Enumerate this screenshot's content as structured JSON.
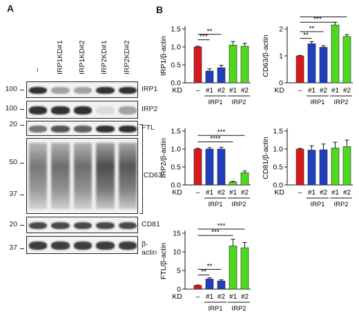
{
  "panels": {
    "a": "A",
    "b": "B"
  },
  "western_blot": {
    "lanes": [
      "–",
      "IRP1KD#1",
      "IRP1KD#2",
      "IRP2KD#1",
      "IRP2KD#2"
    ],
    "rows": [
      {
        "protein": "IRP1",
        "markers": [
          "100"
        ],
        "intensity": [
          0.85,
          0.35,
          0.35,
          0.85,
          0.85
        ]
      },
      {
        "protein": "IRP2",
        "markers": [
          "100"
        ],
        "intensity": [
          0.85,
          0.85,
          0.85,
          0.1,
          0.35
        ]
      },
      {
        "protein": "FTL",
        "markers": [
          "20"
        ],
        "intensity": [
          0.55,
          0.7,
          0.65,
          0.85,
          0.85
        ]
      },
      {
        "protein": "CD63",
        "markers": [
          "50",
          "37"
        ],
        "intensity": [
          0.55,
          0.6,
          0.6,
          0.75,
          0.7
        ]
      },
      {
        "protein": "CD81",
        "markers": [
          "20"
        ],
        "intensity": [
          0.75,
          0.75,
          0.75,
          0.75,
          0.75
        ]
      },
      {
        "protein": "β-actin",
        "markers": [
          "37"
        ],
        "intensity": [
          0.8,
          0.8,
          0.8,
          0.8,
          0.8
        ]
      }
    ]
  },
  "chart_data": [
    {
      "type": "bar",
      "ylabel": "IRP1/β-actin",
      "ylim": [
        0,
        1.5
      ],
      "yticks": [
        "0.0",
        "0.5",
        "1.0",
        "1.5"
      ],
      "kd_label": "KD",
      "categories": [
        "–",
        "#1",
        "#2",
        "#1",
        "#2"
      ],
      "groups": [
        "IRP1",
        "IRP2"
      ],
      "values": [
        1.0,
        0.33,
        0.42,
        1.05,
        1.02
      ],
      "errors": [
        0.02,
        0.06,
        0.07,
        0.1,
        0.08
      ],
      "colors": [
        "#d7191c",
        "#1f3fbf",
        "#1f3fbf",
        "#4ed81e",
        "#4ed81e"
      ],
      "significance": [
        {
          "label": "***",
          "from": 0,
          "to": 1,
          "y": 1.2
        },
        {
          "label": "**",
          "from": 0,
          "to": 2,
          "y": 1.35
        }
      ]
    },
    {
      "type": "bar",
      "ylabel": "CD63/β-actin",
      "ylim": [
        0,
        2.0
      ],
      "yticks": [
        "0",
        "1",
        "2"
      ],
      "kd_label": "KD",
      "categories": [
        "–",
        "#1",
        "#2",
        "#1",
        "#2"
      ],
      "groups": [
        "IRP1",
        "IRP2"
      ],
      "values": [
        1.0,
        1.45,
        1.32,
        2.15,
        1.72
      ],
      "errors": [
        0.02,
        0.08,
        0.06,
        0.1,
        0.07
      ],
      "colors": [
        "#d7191c",
        "#1f3fbf",
        "#1f3fbf",
        "#4ed81e",
        "#4ed81e"
      ],
      "significance": [
        {
          "label": "**",
          "from": 0,
          "to": 1,
          "y": 1.65
        },
        {
          "label": "**",
          "from": 0,
          "to": 2,
          "y": 1.9
        },
        {
          "label": "***",
          "from": 0,
          "to": 3,
          "y": 2.25
        },
        {
          "label": "**",
          "from": 0,
          "to": 4,
          "y": 2.45
        }
      ]
    },
    {
      "type": "bar",
      "ylabel": "IRP2/β-actin",
      "ylim": [
        0,
        1.5
      ],
      "yticks": [
        "0.0",
        "0.5",
        "1.0",
        "1.5"
      ],
      "kd_label": "KD",
      "categories": [
        "–",
        "#1",
        "#2",
        "#1",
        "#2"
      ],
      "groups": [
        "IRP1",
        "IRP2"
      ],
      "values": [
        1.0,
        1.0,
        1.0,
        0.08,
        0.34
      ],
      "errors": [
        0.02,
        0.04,
        0.05,
        0.02,
        0.05
      ],
      "colors": [
        "#d7191c",
        "#1f3fbf",
        "#1f3fbf",
        "#4ed81e",
        "#4ed81e"
      ],
      "significance": [
        {
          "label": "****",
          "from": 0,
          "to": 3,
          "y": 1.2
        },
        {
          "label": "***",
          "from": 0,
          "to": 4,
          "y": 1.38
        }
      ]
    },
    {
      "type": "bar",
      "ylabel": "CD81/β-actin",
      "ylim": [
        0,
        1.5
      ],
      "yticks": [
        "0.0",
        "0.5",
        "1.0",
        "1.5"
      ],
      "kd_label": "KD",
      "categories": [
        "–",
        "#1",
        "#2",
        "#1",
        "#2"
      ],
      "groups": [
        "IRP1",
        "IRP2"
      ],
      "values": [
        1.0,
        0.97,
        0.98,
        1.03,
        1.07
      ],
      "errors": [
        0.02,
        0.12,
        0.16,
        0.16,
        0.18
      ],
      "colors": [
        "#d7191c",
        "#1f3fbf",
        "#1f3fbf",
        "#4ed81e",
        "#4ed81e"
      ],
      "significance": []
    },
    {
      "type": "bar",
      "ylabel": "FTL/β-actin",
      "ylim": [
        0,
        15
      ],
      "yticks": [
        "0",
        "5",
        "10",
        "15"
      ],
      "kd_label": "KD",
      "categories": [
        "–",
        "#1",
        "#2",
        "#1",
        "#2"
      ],
      "groups": [
        "IRP1",
        "IRP2"
      ],
      "values": [
        1.0,
        2.7,
        2.2,
        11.6,
        11.1
      ],
      "errors": [
        0.1,
        0.35,
        0.3,
        1.8,
        1.4
      ],
      "colors": [
        "#d7191c",
        "#1f3fbf",
        "#1f3fbf",
        "#4ed81e",
        "#4ed81e"
      ],
      "significance": [
        {
          "label": "**",
          "from": 0,
          "to": 1,
          "y": 3.8
        },
        {
          "label": "**",
          "from": 0,
          "to": 2,
          "y": 5.3
        },
        {
          "label": "***",
          "from": 0,
          "to": 3,
          "y": 14.4
        },
        {
          "label": "***",
          "from": 0,
          "to": 4,
          "y": 16.1
        }
      ]
    }
  ]
}
